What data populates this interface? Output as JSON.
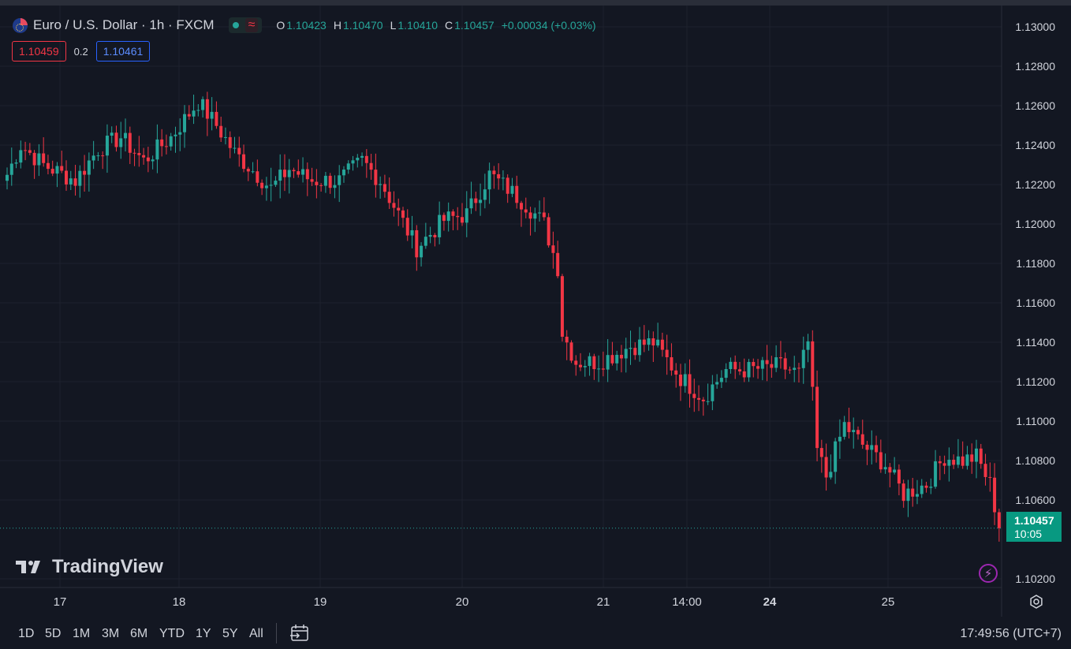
{
  "header": {
    "symbol_title": "Euro / U.S. Dollar · 1h · FXCM",
    "ohlc": [
      {
        "label": "O",
        "value": "1.10423"
      },
      {
        "label": "H",
        "value": "1.10470"
      },
      {
        "label": "L",
        "value": "1.10410"
      },
      {
        "label": "C",
        "value": "1.10457"
      }
    ],
    "change": "+0.00034 (+0.03%)",
    "bid": "1.10459",
    "spread": "0.2",
    "ask": "1.10461"
  },
  "watermark": "TradingView",
  "last_price": {
    "value": "1.10457",
    "countdown": "10:05"
  },
  "bottom_bar": {
    "ranges": [
      "1D",
      "5D",
      "1M",
      "3M",
      "6M",
      "YTD",
      "1Y",
      "5Y",
      "All"
    ],
    "clock": "17:49:56 (UTC+7)"
  },
  "colors": {
    "up": "#26a69a",
    "down": "#f23645",
    "background": "#131722",
    "grid": "#1e222d"
  },
  "chart_data": {
    "type": "candlestick",
    "ylim": [
      1.1016,
      1.1306
    ],
    "y_ticks": [
      "1.13000",
      "1.12800",
      "1.12600",
      "1.12400",
      "1.12200",
      "1.12000",
      "1.11800",
      "1.11600",
      "1.11400",
      "1.11200",
      "1.11000",
      "1.10800",
      "1.10600",
      "1.10200"
    ],
    "x_ticks": [
      {
        "label": "17",
        "bold": false
      },
      {
        "label": "18",
        "bold": false
      },
      {
        "label": "19",
        "bold": false
      },
      {
        "label": "20",
        "bold": false
      },
      {
        "label": "21",
        "bold": false
      },
      {
        "label": "14:00",
        "bold": false
      },
      {
        "label": "24",
        "bold": true
      },
      {
        "label": "25",
        "bold": false
      }
    ],
    "anchors": [
      [
        0,
        1.1225
      ],
      [
        3,
        1.124
      ],
      [
        8,
        1.123
      ],
      [
        15,
        1.1222
      ],
      [
        20,
        1.1238
      ],
      [
        25,
        1.1244
      ],
      [
        30,
        1.1232
      ],
      [
        36,
        1.1244
      ],
      [
        42,
        1.1262
      ],
      [
        46,
        1.125
      ],
      [
        50,
        1.1236
      ],
      [
        55,
        1.1225
      ],
      [
        58,
        1.1218
      ],
      [
        62,
        1.1228
      ],
      [
        67,
        1.1222
      ],
      [
        73,
        1.1222
      ],
      [
        78,
        1.1232
      ],
      [
        82,
        1.1222
      ],
      [
        86,
        1.1205
      ],
      [
        90,
        1.1188
      ],
      [
        96,
        1.1202
      ],
      [
        101,
        1.1205
      ],
      [
        106,
        1.1225
      ],
      [
        110,
        1.1218
      ],
      [
        114,
        1.121
      ],
      [
        118,
        1.12
      ],
      [
        121,
        1.1178
      ],
      [
        122,
        1.1145
      ],
      [
        125,
        1.113
      ],
      [
        130,
        1.113
      ],
      [
        137,
        1.1138
      ],
      [
        142,
        1.114
      ],
      [
        148,
        1.1122
      ],
      [
        153,
        1.1112
      ],
      [
        158,
        1.1126
      ],
      [
        163,
        1.1126
      ],
      [
        170,
        1.1128
      ],
      [
        174,
        1.1124
      ],
      [
        176,
        1.114
      ],
      [
        178,
        1.1085
      ],
      [
        180,
        1.1072
      ],
      [
        184,
        1.1098
      ],
      [
        188,
        1.1088
      ],
      [
        193,
        1.1078
      ],
      [
        197,
        1.1063
      ],
      [
        202,
        1.1068
      ],
      [
        206,
        1.1082
      ],
      [
        210,
        1.108
      ],
      [
        213,
        1.1082
      ],
      [
        216,
        1.1068
      ],
      [
        218,
        1.1046
      ]
    ]
  }
}
